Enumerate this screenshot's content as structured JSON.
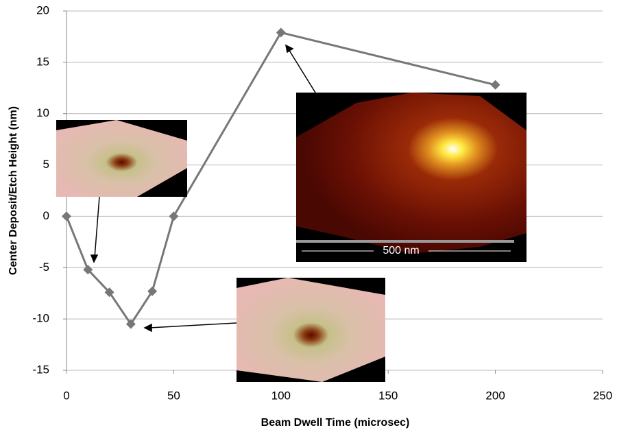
{
  "chart_data": {
    "type": "line",
    "x_label": "Beam Dwell Time (microsec)",
    "y_label": "Center Deposit/Etch Height (nm)",
    "x": [
      0,
      10,
      20,
      30,
      40,
      50,
      100,
      200
    ],
    "series": [
      {
        "color": "#777777",
        "values": [
          0,
          -5.2,
          -7.4,
          -10.5,
          -7.3,
          0,
          17.9,
          12.8
        ]
      }
    ],
    "xlim": [
      0,
      250
    ],
    "xticks": [
      0,
      50,
      100,
      150,
      200,
      250
    ],
    "ylim": [
      -15,
      20
    ],
    "yticks": [
      -15,
      -10,
      -5,
      0,
      5,
      10,
      15,
      20
    ],
    "grid": true,
    "inset_scale_label": "500 nm"
  }
}
